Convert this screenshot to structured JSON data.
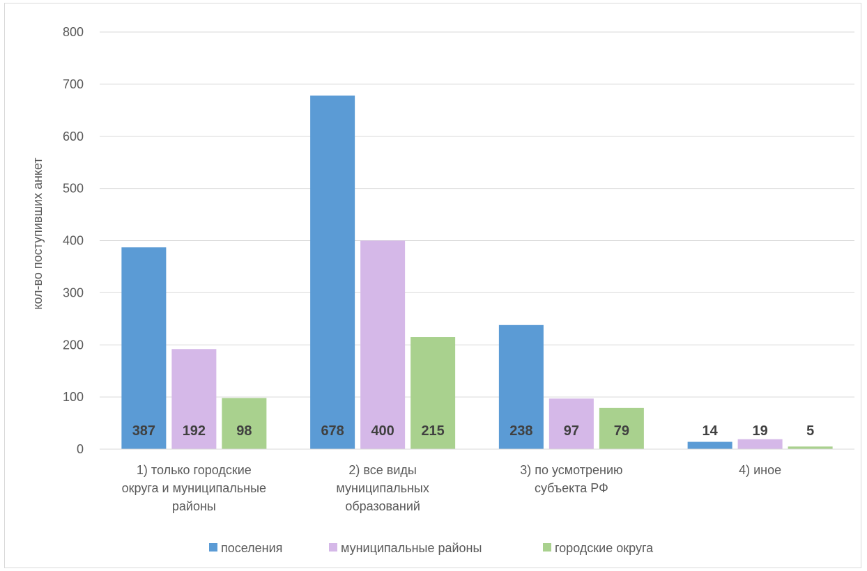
{
  "chart_data": {
    "type": "bar",
    "title": "",
    "ylabel": "кол-во поступивших анкет",
    "xlabel": "",
    "ylim": [
      0,
      800
    ],
    "yticks": [
      0,
      100,
      200,
      300,
      400,
      500,
      600,
      700,
      800
    ],
    "grid": true,
    "legend_position": "bottom",
    "categories": [
      [
        "1) только городские",
        "округа и муниципальные",
        "районы"
      ],
      [
        "2) все виды",
        "муниципальных",
        "образований"
      ],
      [
        "3) по усмотрению",
        "субъекта РФ"
      ],
      [
        "4) иное"
      ]
    ],
    "series": [
      {
        "name": "поселения",
        "color": "#5b9bd5",
        "values": [
          387,
          678,
          238,
          14
        ]
      },
      {
        "name": "муниципальные районы",
        "color": "#d5b8e8",
        "values": [
          192,
          400,
          97,
          19
        ]
      },
      {
        "name": "городские округа",
        "color": "#a9d18e",
        "values": [
          98,
          215,
          79,
          5
        ]
      }
    ]
  }
}
